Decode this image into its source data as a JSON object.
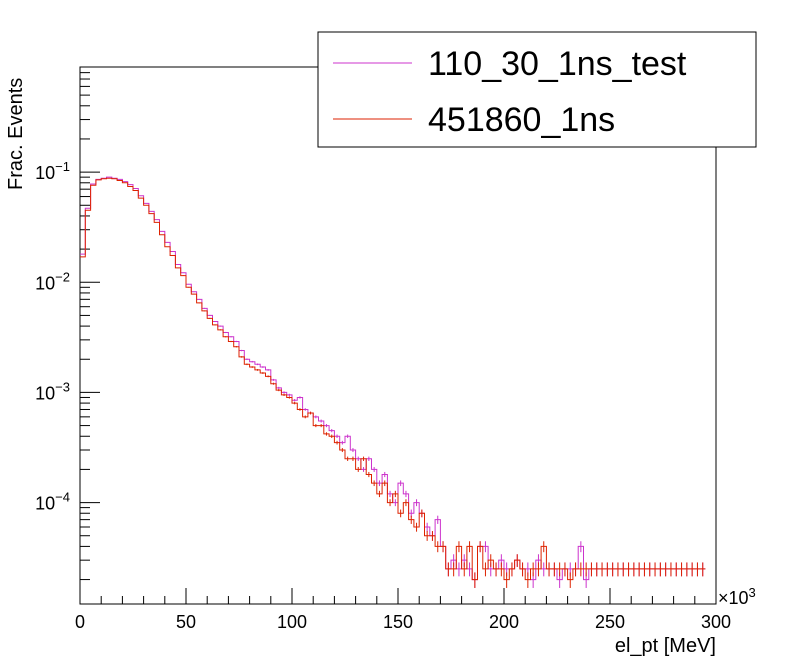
{
  "chart_data": {
    "type": "histogram",
    "xlabel": "el_pt [MeV]",
    "ylabel": "Frac. Events",
    "x_multiplier_label": "×10",
    "x_multiplier_exp": "3",
    "x_unit_scale": 1000,
    "xlim": [
      0,
      300000
    ],
    "ylim": [
      1.2e-05,
      0.9
    ],
    "yscale": "log",
    "bin_width": 2500,
    "x_ticks": [
      {
        "value": 0,
        "label": "0"
      },
      {
        "value": 50000,
        "label": "50"
      },
      {
        "value": 100000,
        "label": "100"
      },
      {
        "value": 150000,
        "label": "150"
      },
      {
        "value": 200000,
        "label": "200"
      },
      {
        "value": 250000,
        "label": "250"
      },
      {
        "value": 300000,
        "label": "300"
      }
    ],
    "y_ticks": [
      {
        "value": 0.1,
        "base": "10",
        "exp": "−1"
      },
      {
        "value": 0.01,
        "base": "10",
        "exp": "−2"
      },
      {
        "value": 0.001,
        "base": "10",
        "exp": "−3"
      },
      {
        "value": 0.0001,
        "base": "10",
        "exp": "−4"
      }
    ],
    "legend_position": "top-right",
    "series": [
      {
        "name": "110_30_1ns_test",
        "color": "#cc33cc",
        "values": [
          0.018,
          0.047,
          0.078,
          0.086,
          0.088,
          0.09,
          0.088,
          0.086,
          0.082,
          0.077,
          0.071,
          0.061,
          0.052,
          0.044,
          0.037,
          0.029,
          0.023,
          0.019,
          0.0145,
          0.0122,
          0.0096,
          0.0082,
          0.007,
          0.0058,
          0.005,
          0.0044,
          0.004,
          0.0035,
          0.0032,
          0.0029,
          0.0024,
          0.002,
          0.0019,
          0.0018,
          0.0017,
          0.0016,
          0.0013,
          0.0011,
          0.001,
          0.00095,
          0.00085,
          0.0009,
          0.0007,
          0.00065,
          0.0006,
          0.00055,
          0.0005,
          0.00045,
          0.0004,
          0.00035,
          0.0004,
          0.0003,
          0.00025,
          0.0002,
          0.00025,
          0.0002,
          0.00015,
          0.00018,
          0.00012,
          0.0001,
          0.00015,
          0.00012,
          8e-05,
          0.0001,
          8e-05,
          6e-05,
          5e-05,
          7e-05,
          4e-05,
          2.5e-05,
          3e-05,
          2.5e-05,
          3e-05,
          2.5e-05,
          2e-05,
          4e-05,
          4e-05,
          2.5e-05,
          2.5e-05,
          3e-05,
          2.5e-05,
          2.5e-05,
          3e-05,
          2.5e-05,
          2.5e-05,
          2e-05,
          3e-05,
          2.5e-05,
          2.5e-05,
          2.5e-05,
          2e-05,
          2.5e-05,
          2.5e-05,
          2.5e-05,
          4e-05,
          2e-05,
          2.5e-05,
          2.5e-05,
          2.5e-05,
          2.5e-05,
          2.5e-05,
          2.5e-05,
          2.5e-05,
          2.5e-05,
          2.5e-05,
          2.5e-05,
          2.5e-05,
          2.5e-05,
          2.5e-05,
          2.5e-05,
          2.5e-05,
          2.5e-05,
          2.5e-05,
          2.5e-05,
          2.5e-05,
          2.5e-05,
          2.5e-05,
          2.5e-05
        ]
      },
      {
        "name": "451860_1ns",
        "color": "#dd2200",
        "values": [
          0.017,
          0.045,
          0.076,
          0.085,
          0.087,
          0.088,
          0.087,
          0.084,
          0.08,
          0.074,
          0.068,
          0.058,
          0.05,
          0.042,
          0.035,
          0.027,
          0.021,
          0.0175,
          0.0135,
          0.0115,
          0.009,
          0.0078,
          0.0065,
          0.0055,
          0.0047,
          0.0041,
          0.0037,
          0.0032,
          0.0029,
          0.0026,
          0.0021,
          0.0018,
          0.0017,
          0.0016,
          0.0015,
          0.0014,
          0.0012,
          0.00105,
          0.00095,
          0.0009,
          0.0008,
          0.0007,
          0.0006,
          0.00065,
          0.0005,
          0.0005,
          0.00042,
          0.0004,
          0.00035,
          0.0003,
          0.00025,
          0.00025,
          0.0002,
          0.00025,
          0.00018,
          0.00015,
          0.00012,
          0.00015,
          0.0001,
          0.00012,
          8e-05,
          0.0001,
          7e-05,
          6e-05,
          8e-05,
          5e-05,
          5e-05,
          4e-05,
          4e-05,
          2.5e-05,
          2.5e-05,
          4e-05,
          2.5e-05,
          4e-05,
          2e-05,
          4e-05,
          2.5e-05,
          3e-05,
          2.5e-05,
          2.5e-05,
          2e-05,
          2.5e-05,
          3e-05,
          2.5e-05,
          2e-05,
          2.5e-05,
          2.5e-05,
          4e-05,
          2.5e-05,
          2.5e-05,
          2.5e-05,
          2.5e-05,
          2e-05,
          2.5e-05,
          2.5e-05,
          2.5e-05,
          2.5e-05,
          2.5e-05,
          2.5e-05,
          2.5e-05,
          2.5e-05,
          2.5e-05,
          2.5e-05,
          2.5e-05,
          2.5e-05,
          2.5e-05,
          2.5e-05,
          2.5e-05,
          2.5e-05,
          2.5e-05,
          2.5e-05,
          2.5e-05,
          2.5e-05,
          2.5e-05,
          2.5e-05,
          2.5e-05,
          2.5e-05,
          2.5e-05
        ]
      }
    ]
  }
}
